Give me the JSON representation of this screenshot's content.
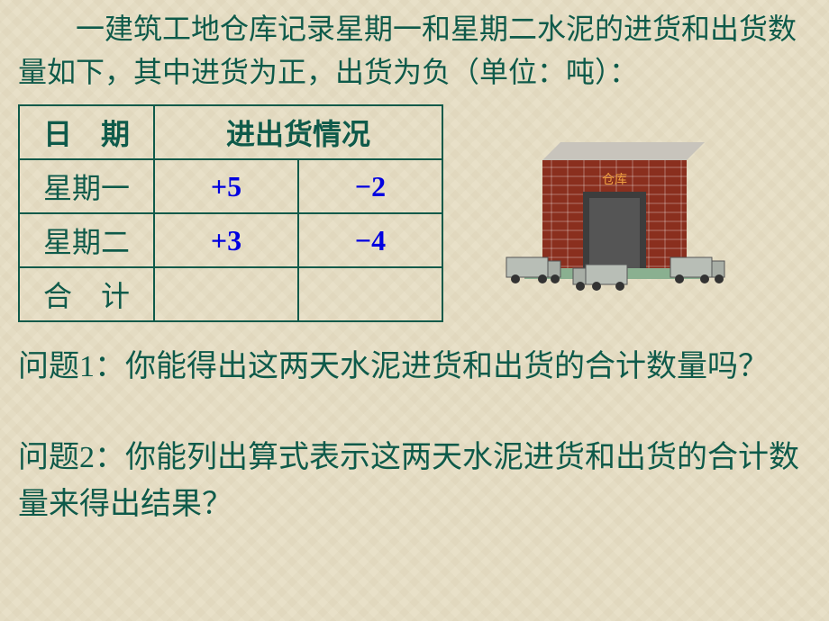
{
  "colors": {
    "text": "#0e5a4a",
    "table_border": "#0e5a4a",
    "values": "#0000e0",
    "bg": "#e8e0c8",
    "warehouse_wall": "#8a2f1e",
    "warehouse_roof": "#c8c4bc",
    "warehouse_door": "#555555",
    "warehouse_base": "#8ab090",
    "truck_body": "#b8beb6",
    "truck_cab": "#a8aea6",
    "warehouse_label": "#f0a040"
  },
  "intro": "一建筑工地仓库记录星期一和星期二水泥的进货和出货数量如下，其中进货为正，出货为负（单位：吨）：",
  "table": {
    "header_date": "日　期",
    "header_flow": "进出货情况",
    "rows": [
      {
        "label": "星期一",
        "in": "+5",
        "out": "−2"
      },
      {
        "label": "星期二",
        "in": "+3",
        "out": "−4"
      },
      {
        "label": "合　计",
        "in": "",
        "out": ""
      }
    ]
  },
  "warehouse_label": "仓库",
  "q1": "问题1：你能得出这两天水泥进货和出货的合计数量吗？",
  "q2": "问题2：你能列出算式表示这两天水泥进货和出货的合计数量来得出结果？"
}
